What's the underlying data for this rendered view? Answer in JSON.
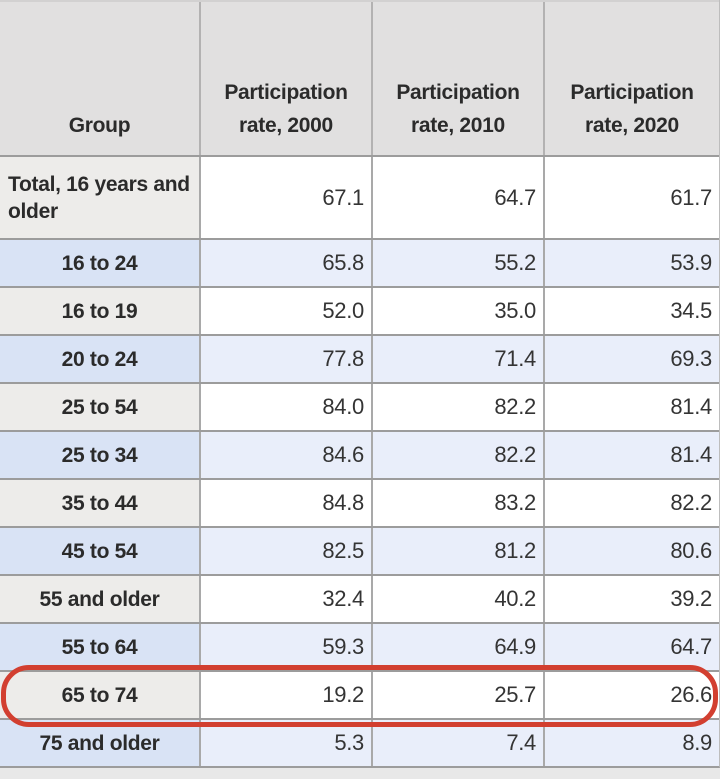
{
  "table": {
    "header": {
      "group": "Group",
      "col_2000": "Participation rate, 2000",
      "col_2010": "Participation rate, 2010",
      "col_2020": "Participation rate, 2020"
    },
    "rows": [
      {
        "group": "Total, 16 years and older",
        "rate_2000": "67.1",
        "rate_2010": "64.7",
        "rate_2020": "61.7"
      },
      {
        "group": "16 to 24",
        "rate_2000": "65.8",
        "rate_2010": "55.2",
        "rate_2020": "53.9"
      },
      {
        "group": "16 to 19",
        "rate_2000": "52.0",
        "rate_2010": "35.0",
        "rate_2020": "34.5"
      },
      {
        "group": "20 to 24",
        "rate_2000": "77.8",
        "rate_2010": "71.4",
        "rate_2020": "69.3"
      },
      {
        "group": "25 to 54",
        "rate_2000": "84.0",
        "rate_2010": "82.2",
        "rate_2020": "81.4"
      },
      {
        "group": "25 to 34",
        "rate_2000": "84.6",
        "rate_2010": "82.2",
        "rate_2020": "81.4"
      },
      {
        "group": "35 to 44",
        "rate_2000": "84.8",
        "rate_2010": "83.2",
        "rate_2020": "82.2"
      },
      {
        "group": "45 to 54",
        "rate_2000": "82.5",
        "rate_2010": "81.2",
        "rate_2020": "80.6"
      },
      {
        "group": "55 and older",
        "rate_2000": "32.4",
        "rate_2010": "40.2",
        "rate_2020": "39.2"
      },
      {
        "group": "55 to 64",
        "rate_2000": "59.3",
        "rate_2010": "64.9",
        "rate_2020": "64.7"
      },
      {
        "group": "65 to 74",
        "rate_2000": "19.2",
        "rate_2010": "25.7",
        "rate_2020": "26.6"
      },
      {
        "group": "75 and older",
        "rate_2000": "5.3",
        "rate_2010": "7.4",
        "rate_2020": "8.9"
      }
    ]
  },
  "annotation": {
    "type": "red-oval",
    "highlighted_group": "65 to 74",
    "color": "#d23f30"
  },
  "colors": {
    "header_bg": "#e1e0e0",
    "gray_label_bg": "#edecea",
    "blue_label_bg": "#d9e3f5",
    "blue_data_bg": "#e9eefa",
    "border": "#9c9c9c",
    "text": "#2b2b2b",
    "annotation_red": "#d23f30"
  },
  "chart_data": {
    "type": "table",
    "title": "",
    "columns": [
      "Group",
      "Participation rate, 2000",
      "Participation rate, 2010",
      "Participation rate, 2020"
    ],
    "categories": [
      "Total, 16 years and older",
      "16 to 24",
      "16 to 19",
      "20 to 24",
      "25 to 54",
      "25 to 34",
      "35 to 44",
      "45 to 54",
      "55 and older",
      "55 to 64",
      "65 to 74",
      "75 and older"
    ],
    "series": [
      {
        "name": "Participation rate, 2000",
        "values": [
          67.1,
          65.8,
          52.0,
          77.8,
          84.0,
          84.6,
          84.8,
          82.5,
          32.4,
          59.3,
          19.2,
          5.3
        ]
      },
      {
        "name": "Participation rate, 2010",
        "values": [
          64.7,
          55.2,
          35.0,
          71.4,
          82.2,
          82.2,
          83.2,
          81.2,
          40.2,
          64.9,
          25.7,
          7.4
        ]
      },
      {
        "name": "Participation rate, 2020",
        "values": [
          61.7,
          53.9,
          34.5,
          69.3,
          81.4,
          81.4,
          82.2,
          80.6,
          39.2,
          64.7,
          26.6,
          8.9
        ]
      }
    ],
    "annotations": [
      "Row '65 to 74' is circled with a red rounded outline"
    ]
  }
}
